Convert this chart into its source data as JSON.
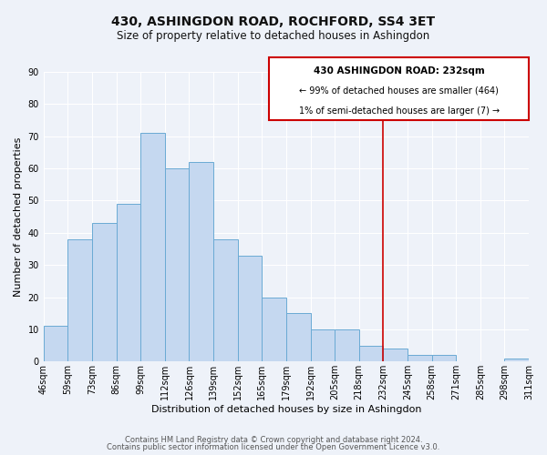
{
  "title": "430, ASHINGDON ROAD, ROCHFORD, SS4 3ET",
  "subtitle": "Size of property relative to detached houses in Ashingdon",
  "xlabel": "Distribution of detached houses by size in Ashingdon",
  "ylabel": "Number of detached properties",
  "bin_labels": [
    "46sqm",
    "59sqm",
    "73sqm",
    "86sqm",
    "99sqm",
    "112sqm",
    "126sqm",
    "139sqm",
    "152sqm",
    "165sqm",
    "179sqm",
    "192sqm",
    "205sqm",
    "218sqm",
    "232sqm",
    "245sqm",
    "258sqm",
    "271sqm",
    "285sqm",
    "298sqm",
    "311sqm"
  ],
  "bar_values": [
    11,
    38,
    43,
    49,
    71,
    60,
    62,
    38,
    33,
    20,
    15,
    10,
    10,
    5,
    4,
    2,
    2,
    0,
    0,
    1,
    0
  ],
  "bar_color": "#c5d8f0",
  "bar_edge_color": "#6aaad4",
  "marker_line_color": "#cc0000",
  "annotation_line1": "430 ASHINGDON ROAD: 232sqm",
  "annotation_line2": "← 99% of detached houses are smaller (464)",
  "annotation_line3": "1% of semi-detached houses are larger (7) →",
  "footer_line1": "Contains HM Land Registry data © Crown copyright and database right 2024.",
  "footer_line2": "Contains public sector information licensed under the Open Government Licence v3.0.",
  "ylim": [
    0,
    90
  ],
  "yticks": [
    0,
    10,
    20,
    30,
    40,
    50,
    60,
    70,
    80,
    90
  ],
  "background_color": "#eef2f9",
  "plot_background": "#eef2f9",
  "grid_color": "#ffffff",
  "title_fontsize": 10,
  "subtitle_fontsize": 8.5,
  "xlabel_fontsize": 8,
  "ylabel_fontsize": 8,
  "tick_fontsize": 7,
  "footer_fontsize": 6,
  "annot_fontsize_bold": 7.5,
  "annot_fontsize": 7
}
